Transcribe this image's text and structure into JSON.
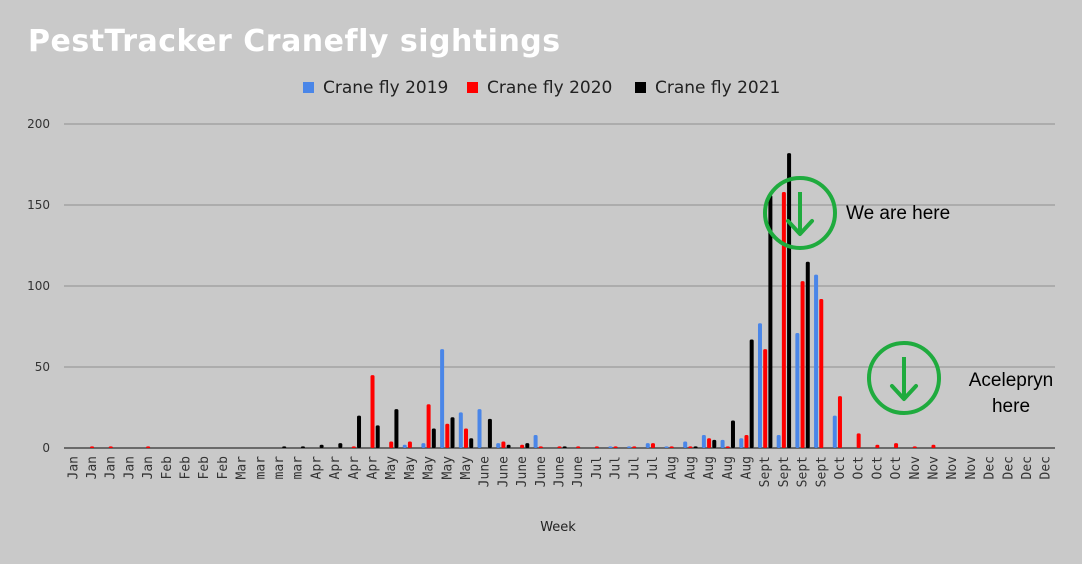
{
  "chart_data": {
    "type": "bar",
    "title": "PestTracker Cranefly sightings",
    "xlabel": "Week",
    "ylabel": "",
    "ylim": [
      0,
      200
    ],
    "yticks": [
      0,
      50,
      100,
      150,
      200
    ],
    "grid": true,
    "legend_position": "top-center",
    "categories": [
      "Jan",
      "Jan",
      "Jan",
      "Jan",
      "Jan",
      "Feb",
      "Feb",
      "Feb",
      "Feb",
      "Mar",
      "mar",
      "mar",
      "mar",
      "Apr",
      "Apr",
      "Apr",
      "Apr",
      "May",
      "May",
      "May",
      "May",
      "May",
      "June",
      "June",
      "June",
      "June",
      "June",
      "June",
      "Jul",
      "Jul",
      "Jul",
      "Jul",
      "Aug",
      "Aug",
      "Aug",
      "Aug",
      "Aug",
      "Sept",
      "Sept",
      "Sept",
      "Sept",
      "Oct",
      "Oct",
      "Oct",
      "Oct",
      "Nov",
      "Nov",
      "Nov",
      "Nov",
      "Dec",
      "Dec",
      "Dec",
      "Dec"
    ],
    "series": [
      {
        "name": "Crane fly 2019",
        "color": "#4a86e8",
        "values": [
          0,
          0,
          0,
          0,
          0,
          0,
          0,
          0,
          0,
          0,
          0,
          0,
          0,
          0,
          0,
          0,
          0,
          0,
          2,
          3,
          61,
          22,
          24,
          3,
          0,
          8,
          0,
          0,
          0,
          1,
          1,
          3,
          1,
          4,
          8,
          5,
          6,
          77,
          8,
          71,
          107,
          20,
          0,
          0,
          0,
          0,
          0,
          0,
          0,
          0,
          0,
          0,
          0
        ]
      },
      {
        "name": "Crane fly 2020",
        "color": "#ff0000",
        "values": [
          0,
          1,
          1,
          0,
          1,
          0,
          0,
          0,
          0,
          0,
          0,
          0,
          0,
          0,
          0,
          1,
          45,
          4,
          4,
          27,
          15,
          12,
          0,
          4,
          2,
          1,
          1,
          1,
          1,
          1,
          1,
          3,
          1,
          1,
          6,
          1,
          8,
          61,
          158,
          103,
          92,
          32,
          9,
          2,
          3,
          1,
          2,
          0,
          0,
          0,
          0,
          0,
          0
        ]
      },
      {
        "name": "Crane fly 2021",
        "color": "#000000",
        "values": [
          0,
          0,
          0,
          0,
          0,
          0,
          0,
          0,
          0,
          0,
          0,
          1,
          1,
          2,
          3,
          20,
          14,
          24,
          0,
          12,
          19,
          6,
          18,
          2,
          3,
          0,
          1,
          0,
          0,
          0,
          0,
          0,
          0,
          1,
          5,
          17,
          67,
          156,
          182,
          115,
          0,
          0,
          0,
          0,
          0,
          0,
          0,
          0,
          0,
          0,
          0,
          0,
          0
        ]
      }
    ],
    "annotations": [
      {
        "text": "We are here",
        "color": "#1fab3e"
      },
      {
        "text": "Aceleprynhere",
        "text_lines": [
          "Acelepryn",
          "here"
        ],
        "color": "#1fab3e"
      }
    ]
  }
}
